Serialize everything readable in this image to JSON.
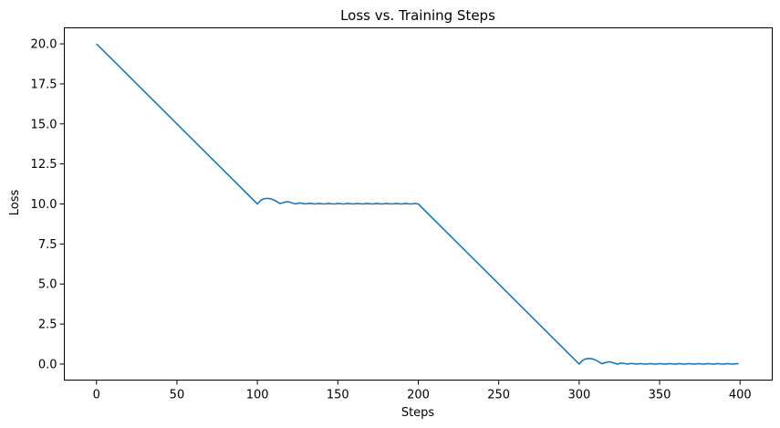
{
  "chart_data": {
    "type": "line",
    "title": "Loss vs. Training Steps",
    "xlabel": "Steps",
    "ylabel": "Loss",
    "xlim": [
      -20,
      420
    ],
    "ylim": [
      -1.0,
      21.0
    ],
    "xticks": [
      0,
      50,
      100,
      150,
      200,
      250,
      300,
      350,
      400
    ],
    "xtick_labels": [
      "0",
      "50",
      "100",
      "150",
      "200",
      "250",
      "300",
      "350",
      "400"
    ],
    "yticks": [
      0,
      2.5,
      5,
      7.5,
      10,
      12.5,
      15,
      17.5,
      20
    ],
    "ytick_labels": [
      "0.0",
      "2.5",
      "5.0",
      "7.5",
      "10.0",
      "12.5",
      "15.0",
      "17.5",
      "20.0"
    ],
    "grid": false,
    "series": [
      {
        "color": "#1f77b4",
        "x": [
          0,
          50,
          100,
          102,
          104,
          106,
          108,
          110,
          112,
          114,
          116,
          118,
          120,
          122,
          124,
          126,
          128,
          130,
          132,
          134,
          136,
          138,
          140,
          142,
          144,
          146,
          148,
          150,
          152,
          154,
          156,
          158,
          160,
          162,
          164,
          166,
          168,
          170,
          172,
          174,
          176,
          178,
          180,
          182,
          184,
          186,
          188,
          190,
          192,
          194,
          196,
          198,
          200,
          250,
          300,
          302,
          304,
          306,
          308,
          310,
          312,
          314,
          316,
          318,
          320,
          322,
          324,
          326,
          328,
          330,
          332,
          334,
          336,
          338,
          340,
          342,
          344,
          346,
          348,
          350,
          352,
          354,
          356,
          358,
          360,
          362,
          364,
          366,
          368,
          370,
          372,
          374,
          376,
          378,
          380,
          382,
          384,
          386,
          388,
          390,
          392,
          394,
          396,
          398,
          399
        ],
        "y": [
          20.0,
          15.0,
          10.0,
          10.22,
          10.32,
          10.35,
          10.33,
          10.26,
          10.15,
          10.03,
          10.08,
          10.14,
          10.12,
          10.05,
          10.0,
          10.06,
          10.04,
          10.0,
          10.04,
          10.02,
          10.0,
          10.03,
          10.01,
          10.0,
          10.03,
          10.01,
          10.0,
          10.03,
          10.01,
          10.0,
          10.03,
          10.01,
          10.0,
          10.03,
          10.01,
          10.0,
          10.03,
          10.01,
          10.0,
          10.03,
          10.01,
          10.0,
          10.03,
          10.01,
          10.0,
          10.03,
          10.01,
          10.0,
          10.03,
          10.01,
          10.0,
          10.03,
          10.0,
          5.0,
          0.0,
          0.22,
          0.32,
          0.35,
          0.33,
          0.26,
          0.15,
          0.03,
          0.08,
          0.14,
          0.12,
          0.05,
          0.0,
          0.06,
          0.04,
          0.0,
          0.04,
          0.02,
          0.0,
          0.03,
          0.01,
          0.0,
          0.03,
          0.01,
          0.0,
          0.03,
          0.01,
          0.0,
          0.03,
          0.01,
          0.0,
          0.03,
          0.01,
          0.0,
          0.03,
          0.01,
          0.0,
          0.03,
          0.01,
          0.0,
          0.03,
          0.01,
          0.0,
          0.03,
          0.01,
          0.0,
          0.03,
          0.01,
          0.0,
          0.03,
          0.01
        ]
      }
    ]
  }
}
